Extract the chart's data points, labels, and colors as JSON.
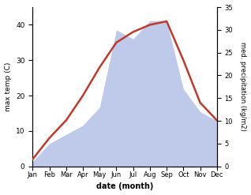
{
  "months": [
    "Jan",
    "Feb",
    "Mar",
    "Apr",
    "May",
    "Jun",
    "Jul",
    "Aug",
    "Sep",
    "Oct",
    "Nov",
    "Dec"
  ],
  "max_temp": [
    2,
    8,
    13,
    20,
    28,
    35,
    38,
    40,
    41,
    30,
    18,
    13
  ],
  "precipitation": [
    1,
    5,
    7,
    9,
    13,
    30,
    28,
    32,
    32,
    17,
    12,
    10
  ],
  "temp_color": "#c0392b",
  "precip_fill_color": "#b8c4e8",
  "temp_ylim": [
    0,
    45
  ],
  "precip_ylim": [
    0,
    35
  ],
  "temp_yticks": [
    0,
    10,
    20,
    30,
    40
  ],
  "precip_yticks": [
    0,
    5,
    10,
    15,
    20,
    25,
    30,
    35
  ],
  "xlabel": "date (month)",
  "ylabel_left": "max temp (C)",
  "ylabel_right": "med. precipitation (kg/m2)",
  "figsize": [
    3.18,
    2.47
  ],
  "dpi": 100
}
